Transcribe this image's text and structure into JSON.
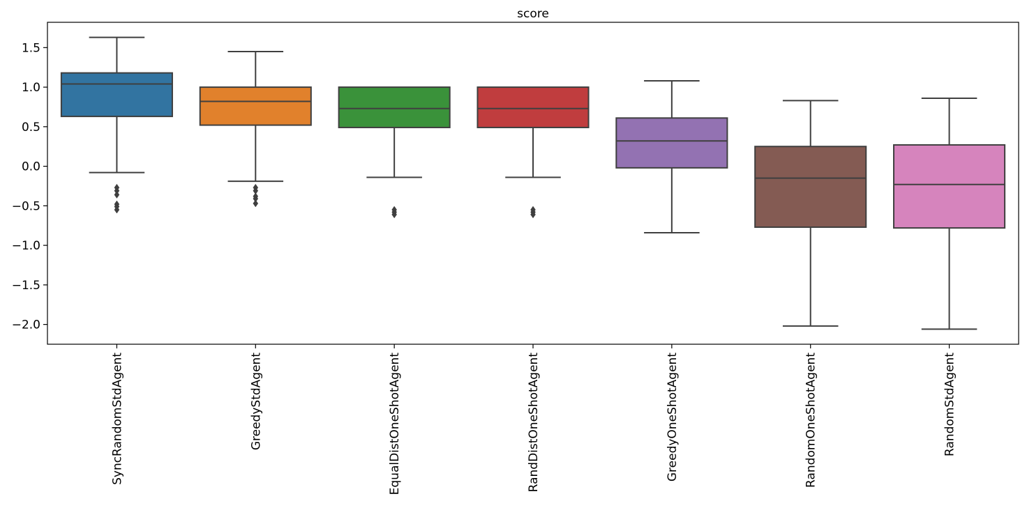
{
  "chart_data": {
    "type": "box",
    "title": "score",
    "xlabel": "",
    "ylabel": "",
    "ylim": [
      -2.25,
      1.82
    ],
    "yticks": [
      -2.0,
      -1.5,
      -1.0,
      -0.5,
      0.0,
      0.5,
      1.0,
      1.5
    ],
    "ytick_labels": [
      "−2.0",
      "−1.5",
      "−1.0",
      "−0.5",
      "0.0",
      "0.5",
      "1.0",
      "1.5"
    ],
    "grid": false,
    "legend": "none",
    "categories": [
      "SyncRandomStdAgent",
      "GreedyStdAgent",
      "EqualDistOneShotAgent",
      "RandDistOneShotAgent",
      "GreedyOneShotAgent",
      "RandomOneShotAgent",
      "RandomStdAgent"
    ],
    "boxes": [
      {
        "name": "SyncRandomStdAgent",
        "whisker_low": -0.08,
        "q1": 0.63,
        "median": 1.04,
        "q3": 1.18,
        "whisker_high": 1.63,
        "outliers": [
          -0.27,
          -0.31,
          -0.36,
          -0.48,
          -0.51,
          -0.55
        ],
        "color": "#3274a1"
      },
      {
        "name": "GreedyStdAgent",
        "whisker_low": -0.19,
        "q1": 0.52,
        "median": 0.82,
        "q3": 1.0,
        "whisker_high": 1.45,
        "outliers": [
          -0.27,
          -0.31,
          -0.38,
          -0.41,
          -0.47
        ],
        "color": "#e1812c"
      },
      {
        "name": "EqualDistOneShotAgent",
        "whisker_low": -0.14,
        "q1": 0.49,
        "median": 0.73,
        "q3": 1.0,
        "whisker_high": null,
        "outliers": [
          -0.55,
          -0.58,
          -0.61
        ],
        "color": "#3a923a"
      },
      {
        "name": "RandDistOneShotAgent",
        "whisker_low": -0.14,
        "q1": 0.49,
        "median": 0.73,
        "q3": 1.0,
        "whisker_high": null,
        "outliers": [
          -0.55,
          -0.58,
          -0.61
        ],
        "color": "#c03d3e"
      },
      {
        "name": "GreedyOneShotAgent",
        "whisker_low": -0.84,
        "q1": -0.02,
        "median": 0.32,
        "q3": 0.61,
        "whisker_high": 1.08,
        "outliers": [],
        "color": "#9372b2"
      },
      {
        "name": "RandomOneShotAgent",
        "whisker_low": -2.02,
        "q1": -0.77,
        "median": -0.15,
        "q3": 0.25,
        "whisker_high": 0.83,
        "outliers": [],
        "color": "#845b53"
      },
      {
        "name": "RandomStdAgent",
        "whisker_low": -2.06,
        "q1": -0.78,
        "median": -0.23,
        "q3": 0.27,
        "whisker_high": 0.86,
        "outliers": [],
        "color": "#d684bd"
      }
    ],
    "edge_color": "#3f3f3f"
  }
}
